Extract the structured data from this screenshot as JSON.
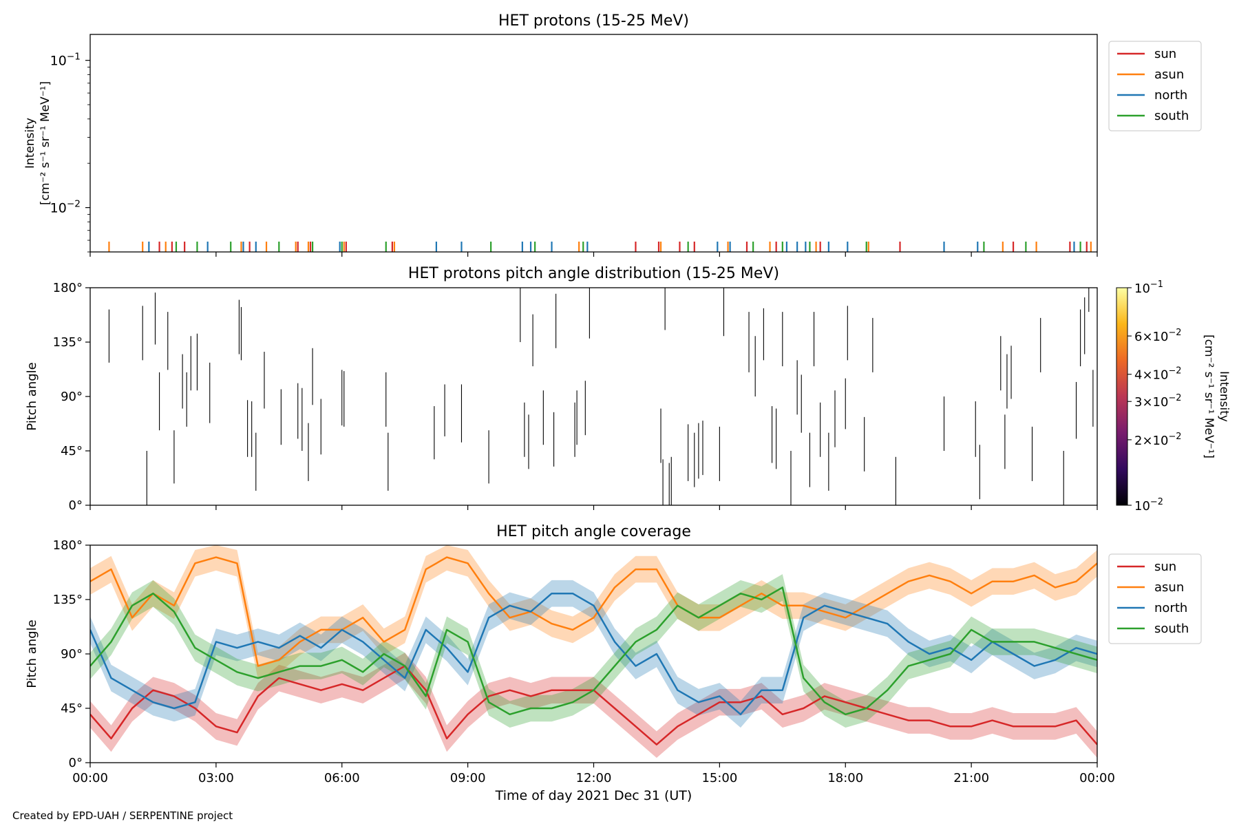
{
  "footer": "Created by EPD-UAH / SERPENTINE project",
  "chart_data": [
    {
      "type": "line",
      "title": "HET protons (15-25 MeV)",
      "ylabel_lines": [
        "Intensity",
        "[cm⁻² s⁻¹ sr⁻¹ MeV⁻¹]"
      ],
      "yscale": "log",
      "ylim": [
        0.005,
        0.15
      ],
      "yticks": [
        {
          "value": 0.1,
          "base": "10",
          "exp": "−1"
        },
        {
          "value": 0.01,
          "base": "10",
          "exp": "−2"
        }
      ],
      "xlim_hours": [
        0,
        24
      ],
      "legend_position": "outside-right",
      "series": [
        {
          "name": "sun",
          "color": "#d62728",
          "spike_hours": [
            1.65,
            1.95,
            2.25,
            3.8,
            4.95,
            5.25,
            6.1,
            7.2,
            13.0,
            13.55,
            14.05,
            14.4,
            15.65,
            16.35,
            17.4,
            19.3,
            22.0,
            23.35,
            23.75
          ]
        },
        {
          "name": "asun",
          "color": "#ff7f0e",
          "spike_hours": [
            0.45,
            1.25,
            1.8,
            3.6,
            4.2,
            4.9,
            5.2,
            6.05,
            7.25,
            11.65,
            13.6,
            15.2,
            16.2,
            17.3,
            18.55,
            21.75,
            22.55,
            23.85
          ]
        },
        {
          "name": "north",
          "color": "#1f77b4",
          "spike_hours": [
            1.4,
            2.8,
            3.65,
            3.95,
            5.95,
            8.25,
            8.85,
            10.3,
            10.5,
            11.0,
            11.85,
            14.95,
            15.25,
            16.6,
            16.85,
            17.05,
            17.6,
            18.05,
            20.35,
            21.15,
            23.45
          ]
        },
        {
          "name": "south",
          "color": "#2ca02c",
          "spike_hours": [
            2.05,
            2.55,
            3.35,
            4.5,
            5.3,
            6.0,
            7.05,
            9.55,
            10.6,
            11.75,
            14.25,
            15.8,
            16.5,
            17.15,
            18.5,
            21.3,
            22.3,
            23.6
          ]
        }
      ]
    },
    {
      "type": "heatmap",
      "title": "HET protons pitch angle distribution (15-25 MeV)",
      "ylabel": "Pitch angle",
      "ylim": [
        0,
        180
      ],
      "yticks": [
        "0°",
        "45°",
        "90°",
        "135°",
        "180°"
      ],
      "xlim_hours": [
        0,
        24
      ],
      "colorbar": {
        "scale": "log",
        "range": [
          0.01,
          0.1
        ],
        "ticks": [
          {
            "value": 0.1,
            "mant": "",
            "exp": "−1"
          },
          {
            "value": 0.06,
            "mant": "6×",
            "exp": "−2"
          },
          {
            "value": 0.04,
            "mant": "4×",
            "exp": "−2"
          },
          {
            "value": 0.03,
            "mant": "3×",
            "exp": "−2"
          },
          {
            "value": 0.02,
            "mant": "2×",
            "exp": "−2"
          },
          {
            "value": 0.01,
            "mant": "",
            "exp": "−2"
          }
        ],
        "label_lines": [
          "Intensity",
          "[cm⁻² s⁻¹ sr⁻¹ MeV⁻¹]"
        ],
        "colors": [
          "#000004",
          "#320a5e",
          "#781c6d",
          "#bb3754",
          "#ed6925",
          "#fbb61a",
          "#fcffa4"
        ]
      },
      "segments": [
        [
          0.45,
          118,
          162
        ],
        [
          1.25,
          120,
          165
        ],
        [
          1.35,
          0,
          45
        ],
        [
          1.55,
          133,
          176
        ],
        [
          1.65,
          62,
          110
        ],
        [
          1.85,
          112,
          160
        ],
        [
          2.0,
          18,
          62
        ],
        [
          2.2,
          80,
          125
        ],
        [
          2.3,
          65,
          110
        ],
        [
          2.4,
          95,
          140
        ],
        [
          2.55,
          95,
          142
        ],
        [
          2.85,
          68,
          118
        ],
        [
          3.55,
          125,
          170
        ],
        [
          3.6,
          120,
          164
        ],
        [
          3.75,
          40,
          87
        ],
        [
          3.85,
          40,
          86
        ],
        [
          3.95,
          12,
          60
        ],
        [
          4.15,
          80,
          127
        ],
        [
          4.55,
          50,
          96
        ],
        [
          4.95,
          55,
          101
        ],
        [
          5.05,
          45,
          97
        ],
        [
          5.2,
          20,
          68
        ],
        [
          5.3,
          83,
          130
        ],
        [
          5.5,
          42,
          88
        ],
        [
          6.0,
          66,
          112
        ],
        [
          6.05,
          65,
          111
        ],
        [
          7.05,
          65,
          110
        ],
        [
          7.1,
          12,
          60
        ],
        [
          8.2,
          38,
          82
        ],
        [
          8.45,
          57,
          100
        ],
        [
          8.85,
          52,
          100
        ],
        [
          9.5,
          18,
          62
        ],
        [
          10.25,
          135,
          182
        ],
        [
          10.35,
          40,
          85
        ],
        [
          10.45,
          30,
          75
        ],
        [
          10.55,
          115,
          158
        ],
        [
          10.8,
          50,
          95
        ],
        [
          11.05,
          32,
          77
        ],
        [
          11.1,
          130,
          175
        ],
        [
          11.55,
          40,
          85
        ],
        [
          11.6,
          50,
          95
        ],
        [
          11.8,
          58,
          103
        ],
        [
          11.9,
          138,
          181
        ],
        [
          13.6,
          35,
          80
        ],
        [
          13.65,
          0,
          38
        ],
        [
          13.7,
          145,
          182
        ],
        [
          13.8,
          0,
          35
        ],
        [
          13.85,
          0,
          40
        ],
        [
          14.25,
          20,
          67
        ],
        [
          14.4,
          15,
          60
        ],
        [
          14.5,
          22,
          68
        ],
        [
          14.6,
          25,
          70
        ],
        [
          15.0,
          20,
          65
        ],
        [
          15.1,
          140,
          183
        ],
        [
          15.7,
          110,
          160
        ],
        [
          15.85,
          90,
          140
        ],
        [
          16.05,
          120,
          163
        ],
        [
          16.25,
          35,
          82
        ],
        [
          16.35,
          30,
          80
        ],
        [
          16.5,
          115,
          160
        ],
        [
          16.7,
          0,
          45
        ],
        [
          16.85,
          75,
          120
        ],
        [
          16.95,
          60,
          108
        ],
        [
          17.15,
          15,
          60
        ],
        [
          17.25,
          115,
          160
        ],
        [
          17.4,
          40,
          85
        ],
        [
          17.6,
          12,
          60
        ],
        [
          17.75,
          48,
          95
        ],
        [
          18.0,
          63,
          105
        ],
        [
          18.05,
          120,
          165
        ],
        [
          18.45,
          28,
          73
        ],
        [
          18.65,
          110,
          155
        ],
        [
          19.2,
          0,
          40
        ],
        [
          20.35,
          45,
          90
        ],
        [
          21.1,
          40,
          86
        ],
        [
          21.2,
          5,
          50
        ],
        [
          21.7,
          95,
          140
        ],
        [
          21.8,
          30,
          75
        ],
        [
          21.85,
          80,
          125
        ],
        [
          21.95,
          88,
          132
        ],
        [
          22.45,
          20,
          65
        ],
        [
          22.65,
          110,
          155
        ],
        [
          23.2,
          0,
          45
        ],
        [
          23.5,
          55,
          102
        ],
        [
          23.6,
          115,
          162
        ],
        [
          23.7,
          125,
          172
        ],
        [
          23.8,
          160,
          182
        ],
        [
          23.9,
          65,
          112
        ]
      ]
    },
    {
      "type": "area",
      "title": "HET pitch angle coverage",
      "ylabel": "Pitch angle",
      "xlabel": "Time of day 2021 Dec 31 (UT)",
      "ylim": [
        0,
        180
      ],
      "yticks": [
        "0°",
        "45°",
        "90°",
        "135°",
        "180°"
      ],
      "xlim_hours": [
        0,
        24
      ],
      "xticks": [
        "00:00",
        "03:00",
        "06:00",
        "09:00",
        "12:00",
        "15:00",
        "18:00",
        "21:00",
        "00:00"
      ],
      "legend_position": "outside-right",
      "x_hours": [
        0,
        0.5,
        1,
        1.5,
        2,
        2.5,
        3,
        3.5,
        4,
        4.5,
        5,
        5.5,
        6,
        6.5,
        7,
        7.5,
        8,
        8.5,
        9,
        9.5,
        10,
        10.5,
        11,
        11.5,
        12,
        12.5,
        13,
        13.5,
        14,
        14.5,
        15,
        15.5,
        16,
        16.5,
        17,
        17.5,
        18,
        18.5,
        19,
        19.5,
        20,
        20.5,
        21,
        21.5,
        22,
        22.5,
        23,
        23.5,
        24
      ],
      "series": [
        {
          "name": "sun",
          "color": "#d62728",
          "band_width": 22,
          "values": [
            40,
            20,
            45,
            60,
            55,
            45,
            30,
            25,
            55,
            70,
            65,
            60,
            65,
            60,
            70,
            80,
            60,
            20,
            40,
            55,
            60,
            55,
            60,
            60,
            60,
            45,
            30,
            15,
            30,
            40,
            50,
            50,
            55,
            40,
            45,
            55,
            50,
            45,
            40,
            35,
            35,
            30,
            30,
            35,
            30,
            30,
            30,
            35,
            15
          ]
        },
        {
          "name": "asun",
          "color": "#ff7f0e",
          "band_width": 22,
          "values": [
            150,
            160,
            120,
            140,
            130,
            165,
            170,
            165,
            80,
            85,
            100,
            110,
            110,
            120,
            100,
            110,
            160,
            170,
            165,
            140,
            120,
            125,
            115,
            110,
            120,
            145,
            160,
            160,
            130,
            120,
            120,
            130,
            140,
            130,
            130,
            125,
            120,
            130,
            140,
            150,
            155,
            150,
            140,
            150,
            150,
            155,
            145,
            150,
            165
          ]
        },
        {
          "name": "north",
          "color": "#1f77b4",
          "band_width": 22,
          "values": [
            110,
            70,
            60,
            50,
            45,
            50,
            100,
            95,
            100,
            95,
            105,
            95,
            110,
            100,
            85,
            70,
            110,
            95,
            75,
            120,
            130,
            125,
            140,
            140,
            130,
            100,
            80,
            90,
            60,
            50,
            55,
            40,
            60,
            60,
            120,
            130,
            125,
            120,
            115,
            100,
            90,
            95,
            85,
            100,
            90,
            80,
            85,
            95,
            90
          ]
        },
        {
          "name": "south",
          "color": "#2ca02c",
          "band_width": 22,
          "values": [
            80,
            100,
            130,
            140,
            125,
            95,
            85,
            75,
            70,
            75,
            80,
            80,
            85,
            75,
            90,
            80,
            55,
            110,
            100,
            50,
            40,
            45,
            45,
            50,
            60,
            80,
            100,
            110,
            130,
            120,
            130,
            140,
            135,
            145,
            70,
            50,
            40,
            45,
            60,
            80,
            85,
            90,
            110,
            100,
            100,
            100,
            95,
            90,
            85
          ]
        }
      ]
    }
  ]
}
